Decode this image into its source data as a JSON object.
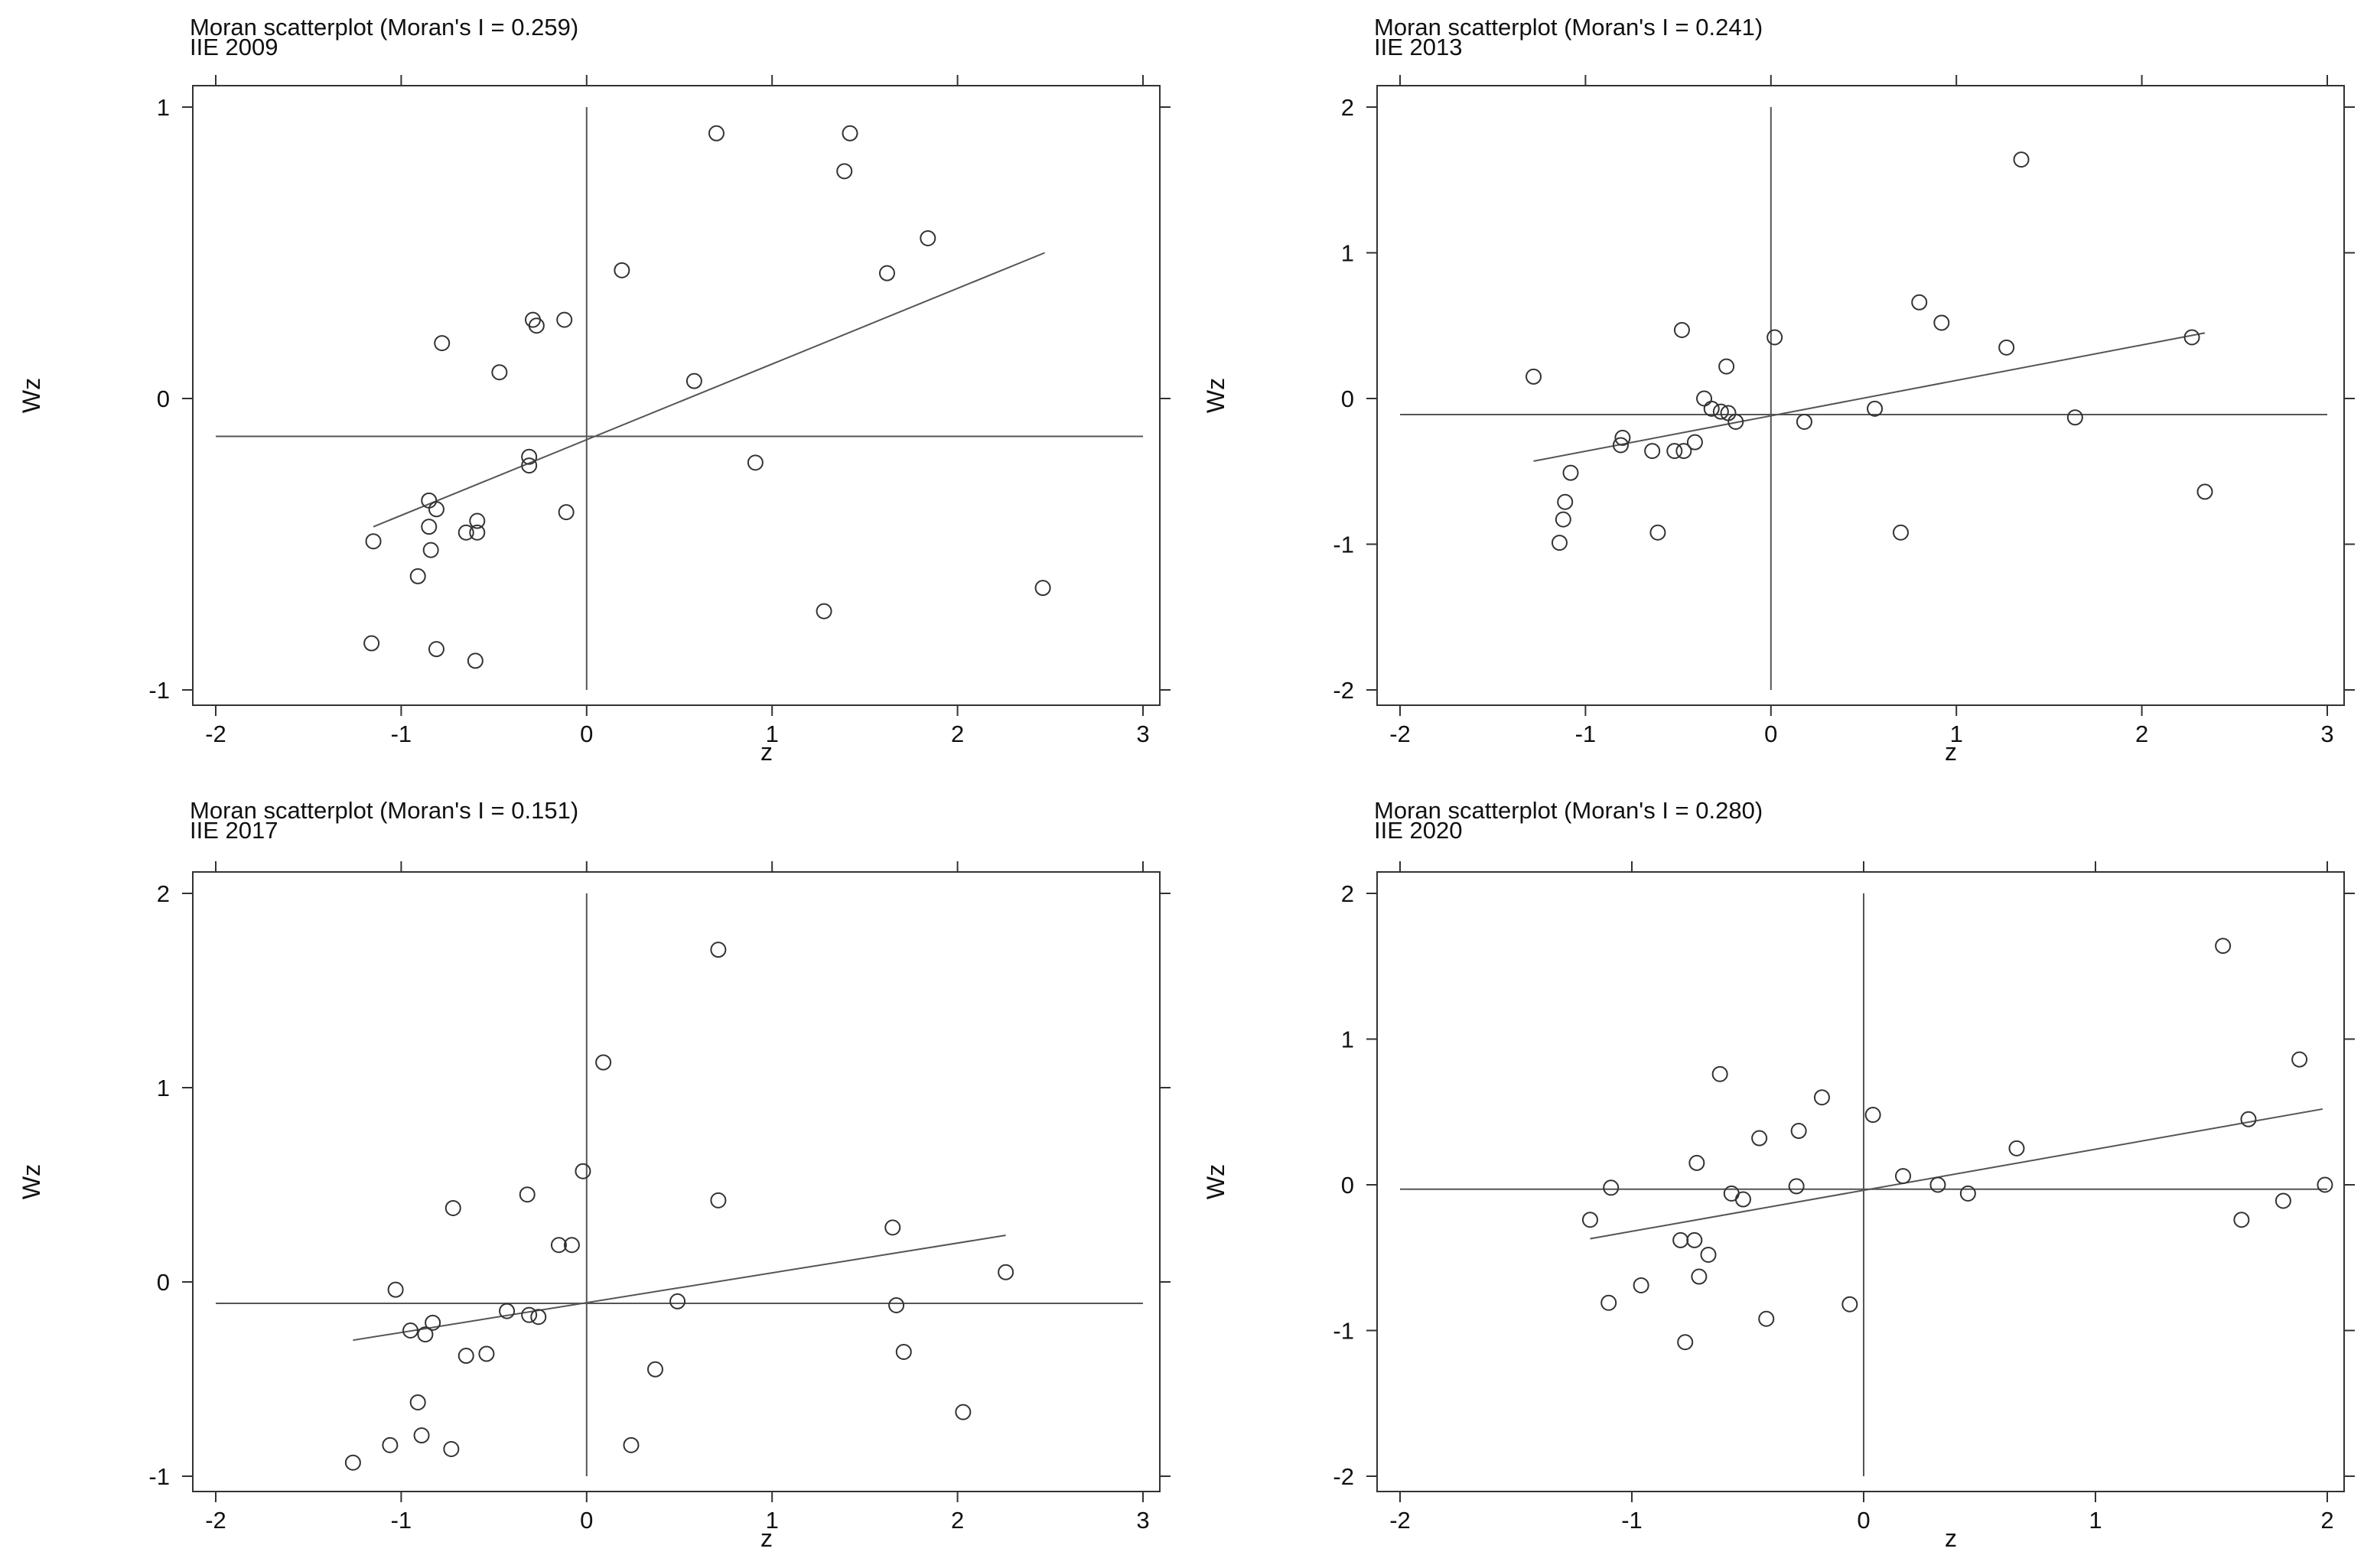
{
  "chart_data": [
    {
      "type": "scatter",
      "title": "Moran scatterplot (Moran's I = 0.259)",
      "subtitle": "IIE 2009",
      "xlabel": "z",
      "ylabel": "Wz",
      "xlim": [
        -2,
        3
      ],
      "ylim": [
        -1,
        1
      ],
      "xticks": [
        -2,
        -1,
        0,
        1,
        2,
        3
      ],
      "yticks": [
        -1,
        0,
        1
      ],
      "vline_x": 0,
      "hline_y": -0.13,
      "fit_line": {
        "x": [
          -1.15,
          2.47
        ],
        "y": [
          -0.44,
          0.5
        ]
      },
      "points": [
        [
          -1.15,
          -0.49
        ],
        [
          -1.16,
          -0.84
        ],
        [
          -0.91,
          -0.61
        ],
        [
          -0.85,
          -0.35
        ],
        [
          -0.85,
          -0.44
        ],
        [
          -0.84,
          -0.52
        ],
        [
          -0.81,
          -0.38
        ],
        [
          -0.81,
          -0.86
        ],
        [
          -0.78,
          0.19
        ],
        [
          -0.65,
          -0.46
        ],
        [
          -0.6,
          -0.9
        ],
        [
          -0.59,
          -0.42
        ],
        [
          -0.59,
          -0.46
        ],
        [
          -0.47,
          0.09
        ],
        [
          -0.31,
          -0.2
        ],
        [
          -0.31,
          -0.23
        ],
        [
          -0.29,
          0.27
        ],
        [
          -0.27,
          0.25
        ],
        [
          -0.12,
          0.27
        ],
        [
          -0.11,
          -0.39
        ],
        [
          0.19,
          0.44
        ],
        [
          0.58,
          0.06
        ],
        [
          0.7,
          0.91
        ],
        [
          0.91,
          -0.22
        ],
        [
          1.28,
          -0.73
        ],
        [
          1.39,
          0.78
        ],
        [
          1.42,
          0.91
        ],
        [
          1.62,
          0.43
        ],
        [
          1.84,
          0.55
        ],
        [
          2.46,
          -0.65
        ]
      ]
    },
    {
      "type": "scatter",
      "title": "Moran scatterplot (Moran's I = 0.241)",
      "subtitle": "IIE 2013",
      "xlabel": "z",
      "ylabel": "Wz",
      "xlim": [
        -2,
        3
      ],
      "ylim": [
        -2,
        2
      ],
      "xticks": [
        -2,
        -1,
        0,
        1,
        2,
        3
      ],
      "yticks": [
        -2,
        -1,
        0,
        1,
        2
      ],
      "vline_x": 0,
      "hline_y": -0.11,
      "fit_line": {
        "x": [
          -1.28,
          2.34
        ],
        "y": [
          -0.43,
          0.45
        ]
      },
      "points": [
        [
          -1.28,
          0.15
        ],
        [
          -1.14,
          -0.99
        ],
        [
          -1.12,
          -0.83
        ],
        [
          -1.11,
          -0.71
        ],
        [
          -1.08,
          -0.51
        ],
        [
          -0.81,
          -0.32
        ],
        [
          -0.8,
          -0.27
        ],
        [
          -0.64,
          -0.36
        ],
        [
          -0.61,
          -0.92
        ],
        [
          -0.52,
          -0.36
        ],
        [
          -0.48,
          0.47
        ],
        [
          -0.47,
          -0.36
        ],
        [
          -0.41,
          -0.3
        ],
        [
          -0.36,
          0.0
        ],
        [
          -0.32,
          -0.07
        ],
        [
          -0.27,
          -0.09
        ],
        [
          -0.24,
          0.22
        ],
        [
          -0.23,
          -0.1
        ],
        [
          -0.19,
          -0.16
        ],
        [
          0.02,
          0.42
        ],
        [
          0.18,
          -0.16
        ],
        [
          0.56,
          -0.07
        ],
        [
          0.7,
          -0.92
        ],
        [
          0.8,
          0.66
        ],
        [
          0.92,
          0.52
        ],
        [
          1.27,
          0.35
        ],
        [
          1.35,
          1.64
        ],
        [
          1.64,
          -0.13
        ],
        [
          2.27,
          0.42
        ],
        [
          2.34,
          -0.64
        ]
      ]
    },
    {
      "type": "scatter",
      "title": "Moran scatterplot (Moran's I = 0.151)",
      "subtitle": "IIE 2017",
      "xlabel": "z",
      "ylabel": "Wz",
      "xlim": [
        -2,
        3
      ],
      "ylim": [
        -1,
        2
      ],
      "xticks": [
        -2,
        -1,
        0,
        1,
        2,
        3
      ],
      "yticks": [
        -1,
        0,
        1,
        2
      ],
      "vline_x": 0,
      "hline_y": -0.11,
      "fit_line": {
        "x": [
          -1.26,
          2.26
        ],
        "y": [
          -0.3,
          0.24
        ]
      },
      "points": [
        [
          -1.26,
          -0.93
        ],
        [
          -1.06,
          -0.84
        ],
        [
          -1.03,
          -0.04
        ],
        [
          -0.95,
          -0.25
        ],
        [
          -0.91,
          -0.62
        ],
        [
          -0.89,
          -0.79
        ],
        [
          -0.87,
          -0.27
        ],
        [
          -0.83,
          -0.21
        ],
        [
          -0.73,
          -0.86
        ],
        [
          -0.72,
          0.38
        ],
        [
          -0.65,
          -0.38
        ],
        [
          -0.54,
          -0.37
        ],
        [
          -0.43,
          -0.15
        ],
        [
          -0.32,
          0.45
        ],
        [
          -0.31,
          -0.17
        ],
        [
          -0.26,
          -0.18
        ],
        [
          -0.15,
          0.19
        ],
        [
          -0.08,
          0.19
        ],
        [
          -0.02,
          0.57
        ],
        [
          0.09,
          1.13
        ],
        [
          0.24,
          -0.84
        ],
        [
          0.37,
          -0.45
        ],
        [
          0.49,
          -0.1
        ],
        [
          0.71,
          1.71
        ],
        [
          0.71,
          0.42
        ],
        [
          1.65,
          0.28
        ],
        [
          1.67,
          -0.12
        ],
        [
          1.71,
          -0.36
        ],
        [
          2.03,
          -0.67
        ],
        [
          2.26,
          0.05
        ]
      ]
    },
    {
      "type": "scatter",
      "title": "Moran scatterplot (Moran's I = 0.280)",
      "subtitle": "IIE 2020",
      "xlabel": "z",
      "ylabel": "Wz",
      "xlim": [
        -2,
        2
      ],
      "ylim": [
        -2,
        2
      ],
      "xticks": [
        -2,
        -1,
        0,
        1,
        2
      ],
      "yticks": [
        -2,
        -1,
        0,
        1,
        2
      ],
      "vline_x": 0,
      "hline_y": -0.03,
      "fit_line": {
        "x": [
          -1.18,
          1.98
        ],
        "y": [
          -0.37,
          0.52
        ]
      },
      "points": [
        [
          -1.18,
          -0.24
        ],
        [
          -1.1,
          -0.81
        ],
        [
          -1.09,
          -0.02
        ],
        [
          -0.96,
          -0.69
        ],
        [
          -0.79,
          -0.38
        ],
        [
          -0.77,
          -1.08
        ],
        [
          -0.73,
          -0.38
        ],
        [
          -0.72,
          0.15
        ],
        [
          -0.71,
          -0.63
        ],
        [
          -0.67,
          -0.48
        ],
        [
          -0.62,
          0.76
        ],
        [
          -0.57,
          -0.06
        ],
        [
          -0.52,
          -0.1
        ],
        [
          -0.45,
          0.32
        ],
        [
          -0.42,
          -0.92
        ],
        [
          -0.29,
          -0.01
        ],
        [
          -0.28,
          0.37
        ],
        [
          -0.18,
          0.6
        ],
        [
          -0.06,
          -0.82
        ],
        [
          0.04,
          0.48
        ],
        [
          0.17,
          0.06
        ],
        [
          0.32,
          0.0
        ],
        [
          0.45,
          -0.06
        ],
        [
          0.66,
          0.25
        ],
        [
          1.55,
          1.64
        ],
        [
          1.63,
          -0.24
        ],
        [
          1.66,
          0.45
        ],
        [
          1.81,
          -0.11
        ],
        [
          1.88,
          0.86
        ],
        [
          1.99,
          0.0
        ]
      ]
    }
  ]
}
